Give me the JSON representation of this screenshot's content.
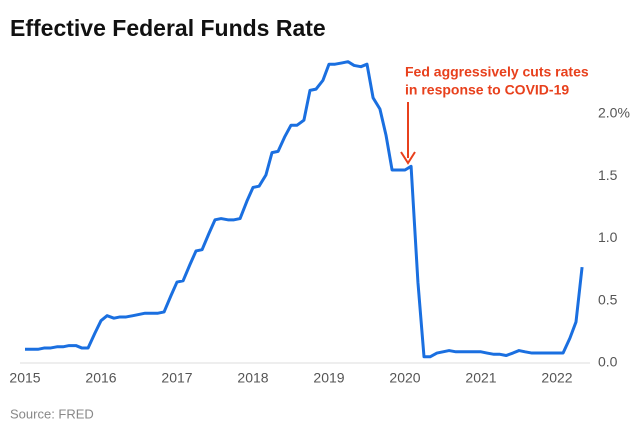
{
  "chart_data": {
    "type": "line",
    "title": "Effective Federal Funds Rate",
    "annotation": [
      "Fed aggressively cuts rates",
      "in response to COVID-19"
    ],
    "source": "Source: FRED",
    "x": [
      2015.0,
      2015.08,
      2015.17,
      2015.25,
      2015.33,
      2015.42,
      2015.5,
      2015.58,
      2015.67,
      2015.75,
      2015.83,
      2015.92,
      2016.0,
      2016.08,
      2016.17,
      2016.25,
      2016.33,
      2016.42,
      2016.5,
      2016.58,
      2016.67,
      2016.75,
      2016.83,
      2016.92,
      2017.0,
      2017.08,
      2017.17,
      2017.25,
      2017.33,
      2017.42,
      2017.5,
      2017.58,
      2017.67,
      2017.75,
      2017.83,
      2017.92,
      2018.0,
      2018.08,
      2018.17,
      2018.25,
      2018.33,
      2018.42,
      2018.5,
      2018.58,
      2018.67,
      2018.75,
      2018.83,
      2018.92,
      2019.0,
      2019.08,
      2019.17,
      2019.25,
      2019.33,
      2019.42,
      2019.5,
      2019.58,
      2019.67,
      2019.75,
      2019.83,
      2019.92,
      2020.0,
      2020.08,
      2020.17,
      2020.25,
      2020.33,
      2020.42,
      2020.5,
      2020.58,
      2020.67,
      2020.75,
      2020.83,
      2020.92,
      2021.0,
      2021.08,
      2021.17,
      2021.25,
      2021.33,
      2021.42,
      2021.5,
      2021.58,
      2021.67,
      2021.75,
      2021.83,
      2021.92,
      2022.0,
      2022.08,
      2022.17,
      2022.25,
      2022.33
    ],
    "series": [
      {
        "name": "Effective Federal Funds Rate",
        "color": "#1a6fe0",
        "values": [
          0.11,
          0.11,
          0.11,
          0.12,
          0.12,
          0.13,
          0.13,
          0.14,
          0.14,
          0.12,
          0.12,
          0.24,
          0.34,
          0.38,
          0.36,
          0.37,
          0.37,
          0.38,
          0.39,
          0.4,
          0.4,
          0.4,
          0.41,
          0.54,
          0.65,
          0.66,
          0.79,
          0.9,
          0.91,
          1.04,
          1.15,
          1.16,
          1.15,
          1.15,
          1.16,
          1.3,
          1.41,
          1.42,
          1.51,
          1.69,
          1.7,
          1.82,
          1.91,
          1.91,
          1.95,
          2.19,
          2.2,
          2.27,
          2.4,
          2.4,
          2.41,
          2.42,
          2.39,
          2.38,
          2.4,
          2.13,
          2.04,
          1.83,
          1.55,
          1.55,
          1.55,
          1.58,
          0.65,
          0.05,
          0.05,
          0.08,
          0.09,
          0.1,
          0.09,
          0.09,
          0.09,
          0.09,
          0.09,
          0.08,
          0.07,
          0.07,
          0.06,
          0.08,
          0.1,
          0.09,
          0.08,
          0.08,
          0.08,
          0.08,
          0.08,
          0.08,
          0.2,
          0.33,
          0.77
        ]
      }
    ],
    "xlim": [
      2015,
      2022.5
    ],
    "xticks": [
      2015,
      2016,
      2017,
      2018,
      2019,
      2020,
      2021,
      2022
    ],
    "ylim": [
      0,
      2.5
    ],
    "yticks": [
      {
        "value": 0,
        "label": "0.0"
      },
      0.5,
      {
        "value": 1,
        "label": "1.0"
      },
      1.5,
      {
        "value": 2,
        "label": "2.0%"
      }
    ],
    "annotation_color": "#e8401c"
  }
}
